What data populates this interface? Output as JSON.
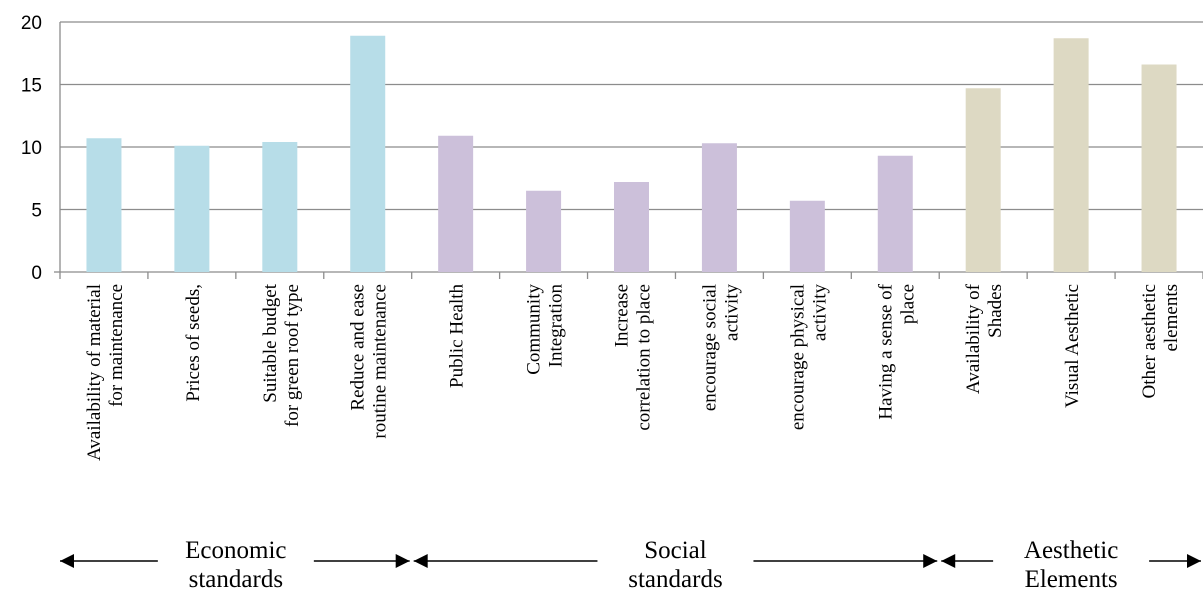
{
  "chart_data": {
    "type": "bar",
    "title": "",
    "xlabel": "",
    "ylabel": "",
    "ylim": [
      0,
      20
    ],
    "yticks": [
      0,
      5,
      10,
      15,
      20
    ],
    "grid": true,
    "categories": [
      [
        "Availability of material",
        "for maintenance"
      ],
      [
        "Prices of seeds,"
      ],
      [
        "Suitable budget",
        "for green roof type"
      ],
      [
        "Reduce and ease",
        "routine maintenance"
      ],
      [
        "Public Health"
      ],
      [
        "Community",
        "Integration"
      ],
      [
        "Increase",
        "correlation to place"
      ],
      [
        "encourage social",
        "activity"
      ],
      [
        "encourage physical",
        "activity"
      ],
      [
        "Having a sense of",
        "place"
      ],
      [
        "Availability of",
        "Shades"
      ],
      [
        "Visual Aesthetic"
      ],
      [
        "Other aesthetic",
        "elements"
      ]
    ],
    "values": [
      10.7,
      10.1,
      10.4,
      18.9,
      10.9,
      6.5,
      7.2,
      10.3,
      5.7,
      9.3,
      14.7,
      18.7,
      16.6
    ],
    "groups": [
      {
        "label": [
          "Economic",
          "standards"
        ],
        "start": 0,
        "end": 3,
        "color": "#b7dde8"
      },
      {
        "label": [
          "Social",
          "standards"
        ],
        "start": 4,
        "end": 9,
        "color": "#ccc0da"
      },
      {
        "label": [
          "Aesthetic",
          "Elements"
        ],
        "start": 10,
        "end": 12,
        "color": "#ddd9c3"
      }
    ]
  }
}
